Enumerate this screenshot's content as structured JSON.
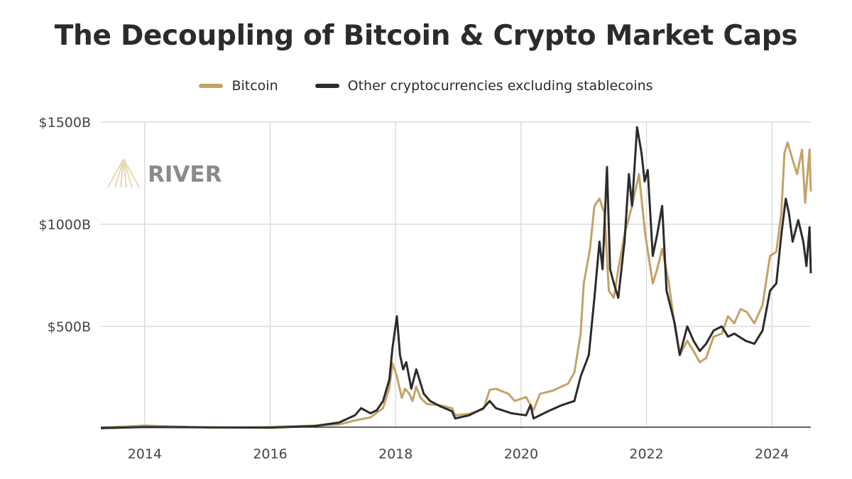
{
  "chart_data": {
    "type": "line",
    "title": "The Decoupling of Bitcoin & Crypto Market Caps",
    "xlabel": "",
    "ylabel": "",
    "xlim": [
      2013.3,
      2024.62
    ],
    "ylim": [
      0,
      1500
    ],
    "x_ticks": [
      2014,
      2016,
      2018,
      2020,
      2022,
      2024
    ],
    "x_tick_labels": [
      "2014",
      "2016",
      "2018",
      "2020",
      "2022",
      "2024"
    ],
    "y_ticks": [
      500,
      1000,
      1500
    ],
    "y_tick_labels": [
      "$500B",
      "$1000B",
      "$1500B"
    ],
    "grid": true,
    "legend_position": "top-center",
    "watermark": "RIVER",
    "series": [
      {
        "name": "Bitcoin",
        "color": "#c4a267",
        "points": [
          [
            2013.3,
            5
          ],
          [
            2014.0,
            15
          ],
          [
            2015.1,
            4
          ],
          [
            2016.0,
            8
          ],
          [
            2016.7,
            15
          ],
          [
            2017.1,
            20
          ],
          [
            2017.35,
            40
          ],
          [
            2017.6,
            55
          ],
          [
            2017.8,
            100
          ],
          [
            2017.9,
            200
          ],
          [
            2017.95,
            320
          ],
          [
            2018.02,
            255
          ],
          [
            2018.1,
            150
          ],
          [
            2018.15,
            195
          ],
          [
            2018.22,
            170
          ],
          [
            2018.27,
            135
          ],
          [
            2018.33,
            205
          ],
          [
            2018.4,
            150
          ],
          [
            2018.5,
            120
          ],
          [
            2018.7,
            115
          ],
          [
            2018.9,
            100
          ],
          [
            2018.95,
            65
          ],
          [
            2019.17,
            72
          ],
          [
            2019.4,
            95
          ],
          [
            2019.5,
            190
          ],
          [
            2019.6,
            195
          ],
          [
            2019.8,
            170
          ],
          [
            2019.9,
            135
          ],
          [
            2020.08,
            155
          ],
          [
            2020.2,
            90
          ],
          [
            2020.3,
            170
          ],
          [
            2020.5,
            185
          ],
          [
            2020.75,
            220
          ],
          [
            2020.85,
            275
          ],
          [
            2020.95,
            465
          ],
          [
            2021.0,
            710
          ],
          [
            2021.1,
            880
          ],
          [
            2021.17,
            1090
          ],
          [
            2021.25,
            1125
          ],
          [
            2021.33,
            1055
          ],
          [
            2021.4,
            675
          ],
          [
            2021.48,
            640
          ],
          [
            2021.55,
            780
          ],
          [
            2021.65,
            950
          ],
          [
            2021.77,
            1090
          ],
          [
            2021.88,
            1245
          ],
          [
            2021.98,
            950
          ],
          [
            2022.1,
            710
          ],
          [
            2022.17,
            780
          ],
          [
            2022.25,
            880
          ],
          [
            2022.35,
            725
          ],
          [
            2022.45,
            500
          ],
          [
            2022.53,
            360
          ],
          [
            2022.65,
            430
          ],
          [
            2022.75,
            380
          ],
          [
            2022.85,
            325
          ],
          [
            2022.95,
            345
          ],
          [
            2023.07,
            450
          ],
          [
            2023.2,
            465
          ],
          [
            2023.3,
            550
          ],
          [
            2023.4,
            515
          ],
          [
            2023.5,
            585
          ],
          [
            2023.6,
            570
          ],
          [
            2023.72,
            515
          ],
          [
            2023.85,
            605
          ],
          [
            2023.97,
            845
          ],
          [
            2024.07,
            865
          ],
          [
            2024.15,
            1055
          ],
          [
            2024.2,
            1350
          ],
          [
            2024.25,
            1400
          ],
          [
            2024.33,
            1315
          ],
          [
            2024.4,
            1245
          ],
          [
            2024.48,
            1365
          ],
          [
            2024.53,
            1105
          ],
          [
            2024.6,
            1365
          ],
          [
            2024.62,
            1160
          ]
        ]
      },
      {
        "name": "Other cryptocurrencies excluding stablecoins",
        "color": "#2b2b2b",
        "points": [
          [
            2013.3,
            2
          ],
          [
            2014.0,
            8
          ],
          [
            2016.0,
            5
          ],
          [
            2016.7,
            12
          ],
          [
            2017.1,
            30
          ],
          [
            2017.35,
            65
          ],
          [
            2017.45,
            100
          ],
          [
            2017.6,
            75
          ],
          [
            2017.7,
            90
          ],
          [
            2017.8,
            135
          ],
          [
            2017.9,
            240
          ],
          [
            2017.95,
            395
          ],
          [
            2018.02,
            550
          ],
          [
            2018.07,
            360
          ],
          [
            2018.12,
            290
          ],
          [
            2018.17,
            325
          ],
          [
            2018.25,
            195
          ],
          [
            2018.33,
            290
          ],
          [
            2018.45,
            170
          ],
          [
            2018.55,
            135
          ],
          [
            2018.72,
            108
          ],
          [
            2018.9,
            85
          ],
          [
            2018.95,
            50
          ],
          [
            2019.17,
            65
          ],
          [
            2019.4,
            100
          ],
          [
            2019.5,
            135
          ],
          [
            2019.6,
            100
          ],
          [
            2019.85,
            75
          ],
          [
            2020.08,
            65
          ],
          [
            2020.15,
            115
          ],
          [
            2020.2,
            50
          ],
          [
            2020.43,
            85
          ],
          [
            2020.65,
            115
          ],
          [
            2020.85,
            135
          ],
          [
            2020.95,
            255
          ],
          [
            2021.08,
            360
          ],
          [
            2021.17,
            640
          ],
          [
            2021.25,
            915
          ],
          [
            2021.3,
            780
          ],
          [
            2021.37,
            1280
          ],
          [
            2021.42,
            780
          ],
          [
            2021.48,
            710
          ],
          [
            2021.55,
            640
          ],
          [
            2021.65,
            915
          ],
          [
            2021.72,
            1245
          ],
          [
            2021.77,
            1090
          ],
          [
            2021.85,
            1475
          ],
          [
            2021.92,
            1350
          ],
          [
            2021.97,
            1210
          ],
          [
            2022.02,
            1265
          ],
          [
            2022.1,
            845
          ],
          [
            2022.17,
            950
          ],
          [
            2022.25,
            1090
          ],
          [
            2022.32,
            675
          ],
          [
            2022.45,
            515
          ],
          [
            2022.53,
            360
          ],
          [
            2022.65,
            500
          ],
          [
            2022.75,
            430
          ],
          [
            2022.85,
            380
          ],
          [
            2022.95,
            415
          ],
          [
            2023.07,
            480
          ],
          [
            2023.2,
            500
          ],
          [
            2023.3,
            450
          ],
          [
            2023.4,
            465
          ],
          [
            2023.58,
            430
          ],
          [
            2023.72,
            415
          ],
          [
            2023.85,
            480
          ],
          [
            2023.97,
            675
          ],
          [
            2024.07,
            710
          ],
          [
            2024.15,
            950
          ],
          [
            2024.22,
            1125
          ],
          [
            2024.27,
            1055
          ],
          [
            2024.33,
            915
          ],
          [
            2024.42,
            1020
          ],
          [
            2024.5,
            915
          ],
          [
            2024.55,
            795
          ],
          [
            2024.6,
            985
          ],
          [
            2024.62,
            760
          ]
        ]
      }
    ]
  }
}
